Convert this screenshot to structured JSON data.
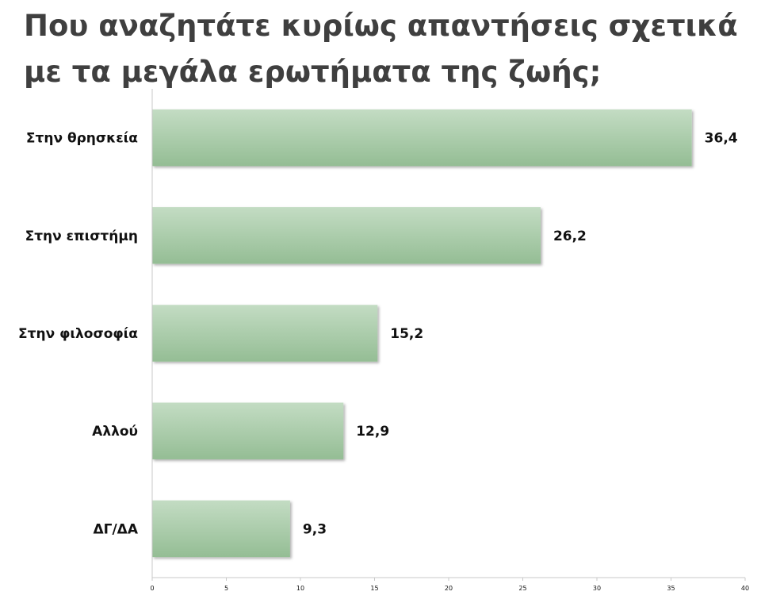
{
  "chart_data": {
    "type": "bar",
    "orientation": "horizontal",
    "title": "Που αναζητάτε κυρίως απαντήσεις σχετικά με τα μεγάλα ερωτήματα της ζωής;",
    "categories": [
      "Στην θρησκεία",
      "Στην επιστήμη",
      "Στην φιλοσοφία",
      "Αλλού",
      "ΔΓ/ΔΑ"
    ],
    "values": [
      36.4,
      26.2,
      15.2,
      12.9,
      9.3
    ],
    "value_labels": [
      "36,4",
      "26,2",
      "15,2",
      "12,9",
      "9,3"
    ],
    "xlim": [
      0,
      40
    ],
    "xticks": [
      0,
      5,
      10,
      15,
      20,
      25,
      30,
      35,
      40
    ],
    "grid": false,
    "legend": "none",
    "colors": {
      "bar_top": "#c3dcc3",
      "bar_bottom": "#94bd94",
      "axis": "#c8c8c8",
      "title": "#3f3f3f"
    }
  }
}
